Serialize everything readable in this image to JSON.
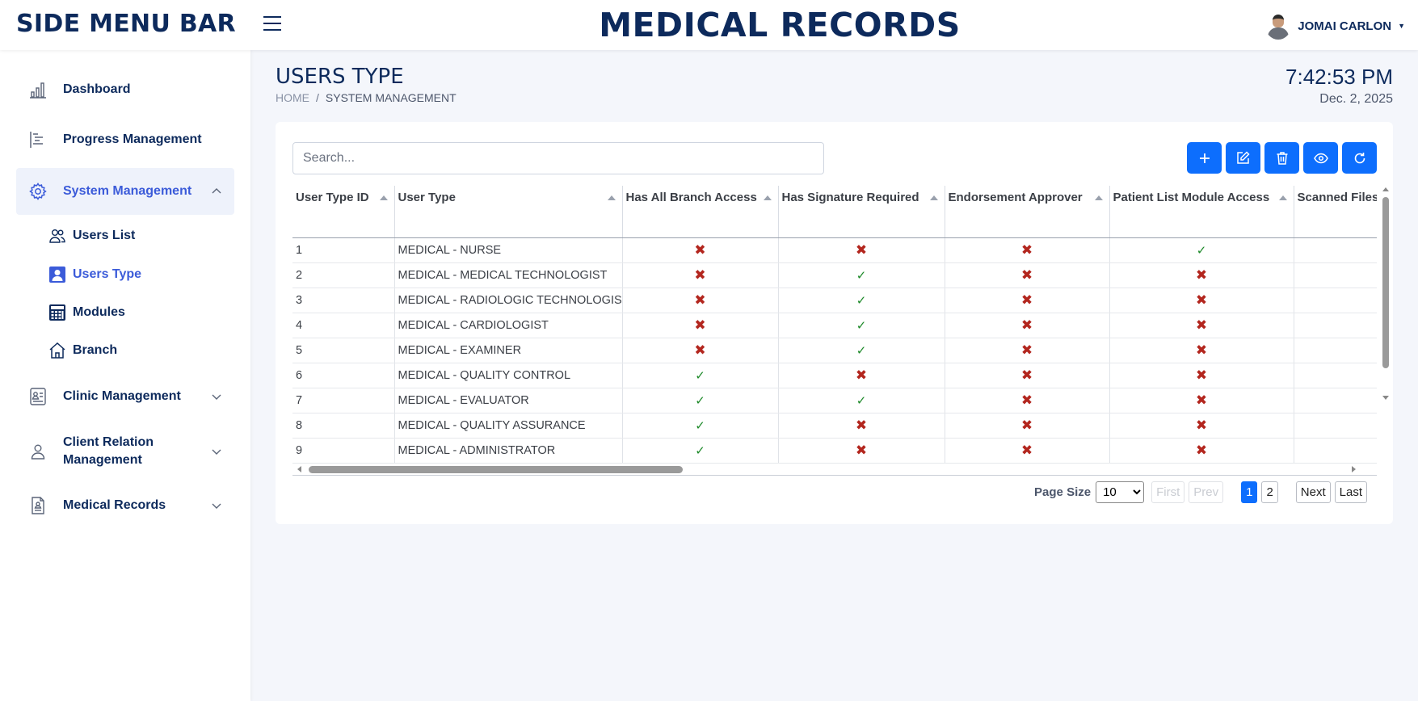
{
  "topbar": {
    "brand": "SIDE MENU BAR",
    "app_title": "MEDICAL RECORDS",
    "user_name": "JOMAI CARLON",
    "icons": {
      "menu": "hamburger-icon",
      "avatar": "user-avatar",
      "caret": "caret-down-icon"
    }
  },
  "sidebar": {
    "items": [
      {
        "label": "Dashboard",
        "icon": "bar-chart-icon"
      },
      {
        "label": "Progress Management",
        "icon": "progress-list-icon"
      },
      {
        "label": "System Management",
        "icon": "gear-icon",
        "expanded": true
      },
      {
        "label": "Clinic Management",
        "icon": "id-card-icon"
      },
      {
        "label": "Client Relation Management",
        "icon": "person-icon"
      },
      {
        "label": "Medical Records",
        "icon": "document-icon"
      }
    ],
    "sub_items": [
      {
        "label": "Users List",
        "icon": "users-icon"
      },
      {
        "label": "Users Type",
        "icon": "user-square-icon",
        "active": true
      },
      {
        "label": "Modules",
        "icon": "calculator-icon"
      },
      {
        "label": "Branch",
        "icon": "house-icon"
      }
    ]
  },
  "page": {
    "title": "USERS TYPE",
    "breadcrumb": {
      "home": "HOME",
      "separator": "/",
      "current": "SYSTEM MANAGEMENT"
    },
    "clock": "7:42:53 PM",
    "date": "Dec. 2, 2025"
  },
  "search": {
    "placeholder": "Search...",
    "value": ""
  },
  "toolbar": {
    "buttons": [
      {
        "name": "add",
        "icon": "plus-icon"
      },
      {
        "name": "edit",
        "icon": "edit-icon"
      },
      {
        "name": "delete",
        "icon": "trash-icon"
      },
      {
        "name": "view",
        "icon": "eye-icon"
      },
      {
        "name": "refresh",
        "icon": "refresh-icon"
      }
    ],
    "accent": "#0d6efd"
  },
  "table": {
    "columns": [
      "User Type ID",
      "User Type",
      "Has All Branch Access",
      "Has Signature Required",
      "Endorsement Approver",
      "Patient List Module Access",
      "Scanned Files"
    ],
    "rows": [
      {
        "id": "1",
        "type": "MEDICAL - NURSE",
        "branch": false,
        "signature": false,
        "endorse": false,
        "patient": true
      },
      {
        "id": "2",
        "type": "MEDICAL - MEDICAL TECHNOLOGIST",
        "branch": false,
        "signature": true,
        "endorse": false,
        "patient": false
      },
      {
        "id": "3",
        "type": "MEDICAL - RADIOLOGIC TECHNOLOGIST",
        "branch": false,
        "signature": true,
        "endorse": false,
        "patient": false
      },
      {
        "id": "4",
        "type": "MEDICAL - CARDIOLOGIST",
        "branch": false,
        "signature": true,
        "endorse": false,
        "patient": false
      },
      {
        "id": "5",
        "type": "MEDICAL - EXAMINER",
        "branch": false,
        "signature": true,
        "endorse": false,
        "patient": false
      },
      {
        "id": "6",
        "type": "MEDICAL - QUALITY CONTROL",
        "branch": true,
        "signature": false,
        "endorse": false,
        "patient": false
      },
      {
        "id": "7",
        "type": "MEDICAL - EVALUATOR",
        "branch": true,
        "signature": true,
        "endorse": false,
        "patient": false
      },
      {
        "id": "8",
        "type": "MEDICAL - QUALITY ASSURANCE",
        "branch": true,
        "signature": false,
        "endorse": false,
        "patient": false
      },
      {
        "id": "9",
        "type": "MEDICAL - ADMINISTRATOR",
        "branch": true,
        "signature": false,
        "endorse": false,
        "patient": false
      }
    ],
    "true_mark": "✓",
    "false_mark": "✖"
  },
  "pager": {
    "page_size_label": "Page Size",
    "page_size": "10",
    "first": "First",
    "prev": "Prev",
    "pages": [
      "1",
      "2"
    ],
    "current_page": "1",
    "next": "Next",
    "last": "Last"
  }
}
